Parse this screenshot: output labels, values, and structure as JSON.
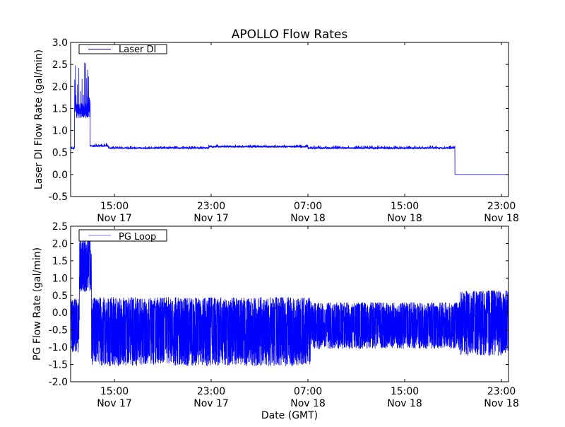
{
  "title": "APOLLO Flow Rates",
  "colors": {
    "line": "#0000ff",
    "axes": "#000000",
    "background": "#ffffff"
  },
  "chart_data": [
    {
      "type": "line",
      "title": "APOLLO Flow Rates",
      "xlabel": "",
      "ylabel": "Laser DI Flow Rate (gal/min)",
      "x_units": "hours since Nov 17 00:00 GMT",
      "xlim": [
        11.38,
        47.58
      ],
      "ylim": [
        -0.5,
        3.0
      ],
      "yticks": [
        -0.5,
        0.0,
        0.5,
        1.0,
        1.5,
        2.0,
        2.5,
        3.0
      ],
      "ytick_labels": [
        "-0.5",
        "0.0",
        "0.5",
        "1.0",
        "1.5",
        "2.0",
        "2.5",
        "3.0"
      ],
      "xticks": [
        15,
        23,
        31,
        39,
        47
      ],
      "xtick_labels": [
        [
          "15:00",
          "Nov 17"
        ],
        [
          "23:00",
          "Nov 17"
        ],
        [
          "07:00",
          "Nov 18"
        ],
        [
          "15:00",
          "Nov 18"
        ],
        [
          "23:00",
          "Nov 18"
        ]
      ],
      "legend": {
        "label": "Laser DI",
        "placement": "top-left"
      },
      "series": [
        {
          "name": "Laser DI",
          "segments": [
            {
              "from": 11.38,
              "to": 11.7,
              "mode": "spiky",
              "base": 0.6,
              "min": 0.56,
              "max": 0.68
            },
            {
              "from": 11.7,
              "to": 13.0,
              "mode": "spiky",
              "base": 1.45,
              "min": 1.4,
              "max": 2.55
            },
            {
              "from": 13.0,
              "to": 14.5,
              "mode": "spiky",
              "base": 0.65,
              "min": 0.6,
              "max": 0.72
            },
            {
              "from": 14.5,
              "to": 22.8,
              "mode": "spiky",
              "base": 0.6,
              "min": 0.55,
              "max": 0.65
            },
            {
              "from": 22.8,
              "to": 31.0,
              "mode": "spiky",
              "base": 0.63,
              "min": 0.58,
              "max": 0.68
            },
            {
              "from": 31.0,
              "to": 43.15,
              "mode": "spiky",
              "base": 0.6,
              "min": 0.55,
              "max": 0.66
            },
            {
              "from": 43.15,
              "to": 47.58,
              "mode": "flat",
              "base": 0.0,
              "min": 0.0,
              "max": 0.0
            }
          ]
        }
      ]
    },
    {
      "type": "line",
      "title": "",
      "xlabel": "Date (GMT)",
      "ylabel": "PG Flow Rate (gal/min)",
      "x_units": "hours since Nov 17 00:00 GMT",
      "xlim": [
        11.38,
        47.58
      ],
      "ylim": [
        -2.0,
        2.5
      ],
      "yticks": [
        -2.0,
        -1.5,
        -1.0,
        -0.5,
        0.0,
        0.5,
        1.0,
        1.5,
        2.0,
        2.5
      ],
      "ytick_labels": [
        "-2.0",
        "-1.5",
        "-1.0",
        "-0.5",
        "0.0",
        "0.5",
        "1.0",
        "1.5",
        "2.0",
        "2.5"
      ],
      "xticks": [
        15,
        23,
        31,
        39,
        47
      ],
      "xtick_labels": [
        [
          "15:00",
          "Nov 17"
        ],
        [
          "23:00",
          "Nov 17"
        ],
        [
          "07:00",
          "Nov 18"
        ],
        [
          "15:00",
          "Nov 18"
        ],
        [
          "23:00",
          "Nov 18"
        ]
      ],
      "legend": {
        "label": "PG Loop",
        "placement": "top-left"
      },
      "series": [
        {
          "name": "PG Loop",
          "segments": [
            {
              "from": 11.38,
              "to": 12.1,
              "mode": "band",
              "base": -0.4,
              "min": -1.15,
              "max": 0.4
            },
            {
              "from": 12.1,
              "to": 13.1,
              "mode": "band",
              "base": 1.3,
              "min": 0.6,
              "max": 2.2
            },
            {
              "from": 13.1,
              "to": 31.2,
              "mode": "band",
              "base": -0.5,
              "min": -1.55,
              "max": 0.45
            },
            {
              "from": 31.2,
              "to": 43.5,
              "mode": "band",
              "base": -0.4,
              "min": -1.05,
              "max": 0.3
            },
            {
              "from": 43.5,
              "to": 47.58,
              "mode": "band",
              "base": -0.3,
              "min": -1.25,
              "max": 0.65
            }
          ]
        }
      ]
    }
  ]
}
